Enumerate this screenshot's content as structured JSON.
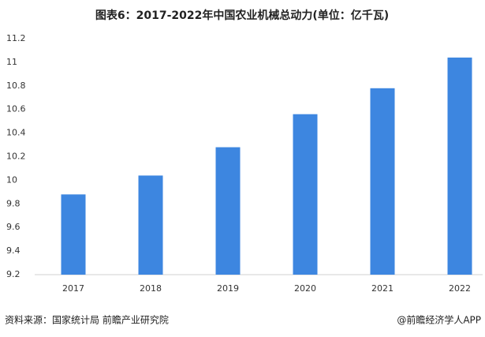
{
  "chart_data": {
    "type": "bar",
    "title": "图表6：2017-2022年中国农业机械总动力(单位：亿千瓦)",
    "categories": [
      "2017",
      "2018",
      "2019",
      "2020",
      "2021",
      "2022"
    ],
    "values": [
      9.88,
      10.04,
      10.28,
      10.56,
      10.78,
      11.04
    ],
    "color": "#3d86e0",
    "ylim": [
      9.2,
      11.2
    ],
    "yticks": [
      9.2,
      9.4,
      9.6,
      9.8,
      10,
      10.2,
      10.4,
      10.6,
      10.8,
      11,
      11.2
    ],
    "grid": false,
    "source": "资料来源：国家统计局 前瞻产业研究院",
    "credit": "@前瞻经济学人APP"
  }
}
